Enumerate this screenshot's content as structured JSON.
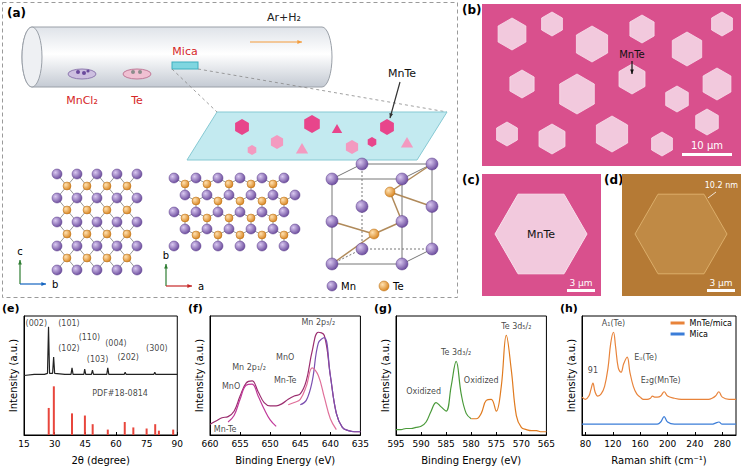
{
  "diagram": {
    "panel": "(a)",
    "gas": "Ar+H₂",
    "substrate": "Mica",
    "sources": [
      "MnCl₂",
      "Te"
    ],
    "product": "MnTe",
    "views": [
      {
        "axes": [
          "c",
          "b"
        ]
      },
      {
        "axes": [
          "b",
          "a"
        ]
      }
    ],
    "atoms": [
      "Mn",
      "Te"
    ]
  },
  "images": [
    {
      "panel": "(b)",
      "label": "MnTe",
      "scale_bar": "10 μm"
    },
    {
      "panel": "(c)",
      "label": "MnTe",
      "scale_bar": "3 μm"
    },
    {
      "panel": "(d)",
      "label": "10.2 nm",
      "scale_bar": "3 μm"
    }
  ],
  "chart_data": [
    {
      "panel": "(e)",
      "type": "line",
      "xlabel": "2θ (degree)",
      "ylabel": "Intensity (a.u.)",
      "xlim": [
        15,
        90
      ],
      "xticks": [
        15,
        30,
        45,
        60,
        75,
        90
      ],
      "ylim": [
        0,
        1.1
      ],
      "tick_labels": "x",
      "grid": false,
      "series": [
        {
          "type": "line",
          "color": "#222222",
          "x": [
            15,
            20,
            25,
            26.5,
            27,
            27.5,
            29,
            29.5,
            30,
            35,
            38,
            38.5,
            39,
            44.3,
            44.7,
            45.2,
            48,
            48.5,
            49,
            55.5,
            56,
            56.5,
            64,
            64.5,
            65,
            78.5,
            79,
            79.5,
            90
          ],
          "values": [
            0.55,
            0.56,
            0.56,
            0.57,
            1.0,
            0.57,
            0.57,
            0.72,
            0.57,
            0.56,
            0.56,
            0.62,
            0.56,
            0.56,
            0.61,
            0.56,
            0.56,
            0.6,
            0.56,
            0.56,
            0.62,
            0.56,
            0.56,
            0.58,
            0.56,
            0.56,
            0.58,
            0.56,
            0.56
          ]
        },
        {
          "type": "bar",
          "color": "#e8463c",
          "x": [
            27.1,
            29.6,
            38.5,
            44.8,
            48.6,
            56.0,
            64.3,
            68.5,
            75.0,
            79.2,
            81.0,
            88.0
          ],
          "values": [
            0.25,
            0.45,
            0.2,
            0.18,
            0.1,
            0.05,
            0.12,
            0.07,
            0.06,
            0.1,
            0.04,
            0.05
          ]
        }
      ],
      "annotations": [
        {
          "text": "(002)",
          "x": 21,
          "y": 1.03
        },
        {
          "text": "(101)",
          "x": 37,
          "y": 1.03
        },
        {
          "text": "(102)",
          "x": 37,
          "y": 0.8
        },
        {
          "text": "(110)",
          "x": 47,
          "y": 0.9
        },
        {
          "text": "(103)",
          "x": 51,
          "y": 0.7
        },
        {
          "text": "(004)",
          "x": 60,
          "y": 0.85
        },
        {
          "text": "(202)",
          "x": 66,
          "y": 0.72
        },
        {
          "text": "(300)",
          "x": 80,
          "y": 0.8
        },
        {
          "text": "PDF#18-0814",
          "x": 62,
          "y": 0.38
        }
      ]
    },
    {
      "panel": "(f)",
      "type": "line",
      "xlabel": "Binding Energy (eV)",
      "ylabel": "Intensity (a.u.)",
      "xlim": [
        660,
        635
      ],
      "xticks": [
        660,
        655,
        650,
        645,
        640,
        635
      ],
      "ylim": [
        0,
        1.1
      ],
      "tick_labels": "x",
      "grid": false,
      "line_style": "smooth",
      "x": [
        660,
        659,
        658,
        657,
        656,
        655,
        654,
        653,
        652,
        651,
        650,
        649,
        648,
        647,
        646,
        645,
        644,
        643,
        642,
        641,
        640,
        639,
        638,
        637,
        636,
        635
      ],
      "series": [
        {
          "color": "#9b2d6f",
          "values": [
            0.1,
            0.13,
            0.16,
            0.17,
            0.22,
            0.36,
            0.48,
            0.5,
            0.4,
            0.3,
            0.27,
            0.27,
            0.29,
            0.33,
            0.36,
            0.38,
            0.5,
            0.78,
            0.95,
            0.92,
            0.55,
            0.2,
            0.07,
            0.04,
            0.03,
            0.03
          ]
        },
        {
          "color": "#7b4fb0",
          "values": [
            null,
            null,
            null,
            null,
            null,
            null,
            null,
            null,
            null,
            null,
            null,
            null,
            null,
            null,
            null,
            0.28,
            0.32,
            0.5,
            0.85,
            0.9,
            0.55,
            0.2,
            0.07,
            0.04,
            0.03,
            0.03
          ]
        },
        {
          "color": "#e0709a",
          "values": [
            null,
            null,
            null,
            null,
            null,
            null,
            null,
            null,
            null,
            null,
            null,
            null,
            null,
            0.28,
            0.3,
            0.33,
            0.45,
            0.62,
            0.55,
            0.35,
            0.15,
            0.05,
            null,
            null,
            null,
            null
          ]
        },
        {
          "color": "#c0399a",
          "values": [
            null,
            null,
            null,
            0.12,
            0.18,
            0.33,
            0.46,
            0.47,
            0.36,
            0.24,
            0.14,
            0.08,
            null,
            null,
            null,
            null,
            null,
            null,
            null,
            null,
            null,
            null,
            null,
            null,
            null,
            null
          ]
        }
      ],
      "annotations": [
        {
          "text": "Mn 2p₃/₂",
          "x": 642,
          "y": 1.04
        },
        {
          "text": "MnO",
          "x": 647.5,
          "y": 0.72
        },
        {
          "text": "Mn-Te",
          "x": 647.5,
          "y": 0.5
        },
        {
          "text": "Mn 2p₁/₂",
          "x": 653.5,
          "y": 0.62
        },
        {
          "text": "MnO",
          "x": 656.5,
          "y": 0.45
        },
        {
          "text": "Mn-Te",
          "x": 657.5,
          "y": 0.05
        }
      ]
    },
    {
      "panel": "(g)",
      "type": "line",
      "xlabel": "Binding Energy (eV)",
      "ylabel": "Intensity (a.u.)",
      "xlim": [
        595,
        565
      ],
      "xticks": [
        595,
        590,
        585,
        580,
        575,
        570,
        565
      ],
      "ylim": [
        0,
        1.1
      ],
      "tick_labels": "x",
      "grid": false,
      "line_style": "smooth",
      "x": [
        595,
        594,
        593,
        592,
        591,
        590,
        589,
        588,
        587,
        586,
        585,
        584,
        583,
        582,
        581,
        580,
        579,
        578,
        577,
        576,
        575,
        574,
        573,
        572,
        571,
        570,
        569,
        568,
        567,
        566,
        565
      ],
      "series": [
        {
          "color": "#4a9a3a",
          "values": [
            0.05,
            0.05,
            0.06,
            0.06,
            0.07,
            0.08,
            0.12,
            0.22,
            0.3,
            0.26,
            0.22,
            0.45,
            0.68,
            0.38,
            0.2,
            0.15,
            null,
            null,
            null,
            null,
            null,
            null,
            null,
            null,
            null,
            null,
            null,
            null,
            null,
            null,
            null
          ]
        },
        {
          "color": "#e07b20",
          "values": [
            null,
            null,
            null,
            null,
            null,
            null,
            null,
            null,
            null,
            null,
            null,
            null,
            null,
            null,
            null,
            0.15,
            0.15,
            0.2,
            0.32,
            0.33,
            0.22,
            0.45,
            0.92,
            0.6,
            0.18,
            0.07,
            0.05,
            0.04,
            0.04,
            0.03,
            0.03
          ]
        }
      ],
      "annotations": [
        {
          "text": "Te 3d₅/₂",
          "x": 571,
          "y": 1.0
        },
        {
          "text": "Te 3d₃/₂",
          "x": 583,
          "y": 0.76
        },
        {
          "text": "Oxidized",
          "x": 578,
          "y": 0.5
        },
        {
          "text": "Oxidized",
          "x": 589.5,
          "y": 0.4
        }
      ]
    },
    {
      "panel": "(h)",
      "type": "line",
      "xlabel": "Raman shift (cm⁻¹)",
      "ylabel": "Intensity (a.u.)",
      "xlim": [
        75,
        300
      ],
      "xticks": [
        80,
        120,
        160,
        200,
        240,
        280
      ],
      "ylim": [
        0,
        1.1
      ],
      "tick_labels": "x",
      "grid": false,
      "line_style": "smooth",
      "legend": "upper right",
      "x": [
        75,
        80,
        85,
        88,
        91,
        94,
        98,
        103,
        108,
        113,
        117,
        121,
        124,
        128,
        132,
        136,
        141,
        145,
        150,
        155,
        160,
        165,
        170,
        175,
        178,
        181,
        185,
        190,
        195,
        200,
        210,
        220,
        230,
        240,
        250,
        260,
        265,
        270,
        275,
        280,
        290,
        300
      ],
      "series": [
        {
          "name": "MnTe/mica",
          "color": "#e8833a",
          "values": [
            0.35,
            0.33,
            0.36,
            0.42,
            0.48,
            0.4,
            0.36,
            0.38,
            0.45,
            0.62,
            0.85,
            0.95,
            0.82,
            0.62,
            0.58,
            0.66,
            0.72,
            0.58,
            0.45,
            0.38,
            0.35,
            0.33,
            0.33,
            0.34,
            0.36,
            0.35,
            0.35,
            0.36,
            0.4,
            0.36,
            0.34,
            0.33,
            0.33,
            0.33,
            0.33,
            0.33,
            0.34,
            0.36,
            0.4,
            0.35,
            0.33,
            0.33
          ]
        },
        {
          "name": "Mica",
          "color": "#3b7dd8",
          "values": [
            0.1,
            0.1,
            0.1,
            0.1,
            0.1,
            0.1,
            0.1,
            0.1,
            0.1,
            0.1,
            0.1,
            0.1,
            0.1,
            0.1,
            0.1,
            0.1,
            0.1,
            0.1,
            0.1,
            0.1,
            0.1,
            0.1,
            0.1,
            0.1,
            0.1,
            0.1,
            0.1,
            0.12,
            0.17,
            0.12,
            0.1,
            0.1,
            0.1,
            0.1,
            0.1,
            0.1,
            0.1,
            0.11,
            0.12,
            0.1,
            0.1,
            0.1
          ]
        }
      ],
      "annotations": [
        {
          "text": "A₁(Te)",
          "x": 121,
          "y": 1.03
        },
        {
          "text": "Eᵤ(Te)",
          "x": 168,
          "y": 0.72
        },
        {
          "text": "E₂g(MnTe)",
          "x": 190,
          "y": 0.5
        },
        {
          "text": "91",
          "x": 91,
          "y": 0.6
        }
      ]
    }
  ]
}
